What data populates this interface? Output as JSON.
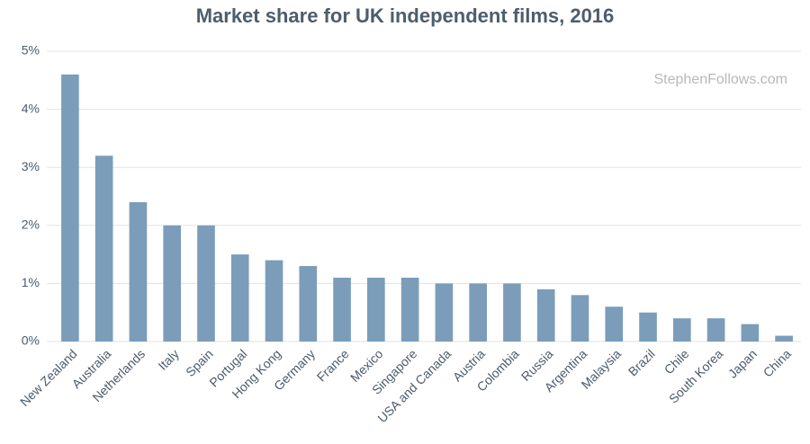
{
  "chart_data": {
    "type": "bar",
    "title": "Market share for UK independent films, 2016",
    "watermark": "StephenFollows.com",
    "categories": [
      "New Zealand",
      "Australia",
      "Netherlands",
      "Italy",
      "Spain",
      "Portugal",
      "Hong Kong",
      "Germany",
      "France",
      "Mexico",
      "Singapore",
      "USA and Canada",
      "Austria",
      "Colombia",
      "Russia",
      "Argentina",
      "Malaysia",
      "Brazil",
      "Chile",
      "South Korea",
      "Japan",
      "China"
    ],
    "values": [
      4.6,
      3.2,
      2.4,
      2.0,
      2.0,
      1.5,
      1.4,
      1.3,
      1.1,
      1.1,
      1.1,
      1.0,
      1.0,
      1.0,
      0.9,
      0.8,
      0.6,
      0.5,
      0.4,
      0.4,
      0.3,
      0.1
    ],
    "color": "#7b9dba",
    "ylim": [
      0,
      5
    ],
    "yticks": [
      {
        "value": 0,
        "label": "0%"
      },
      {
        "value": 1,
        "label": "1%"
      },
      {
        "value": 2,
        "label": "2%"
      },
      {
        "value": 3,
        "label": "3%"
      },
      {
        "value": 4,
        "label": "4%"
      },
      {
        "value": 5,
        "label": "5%"
      }
    ],
    "grid": true
  }
}
